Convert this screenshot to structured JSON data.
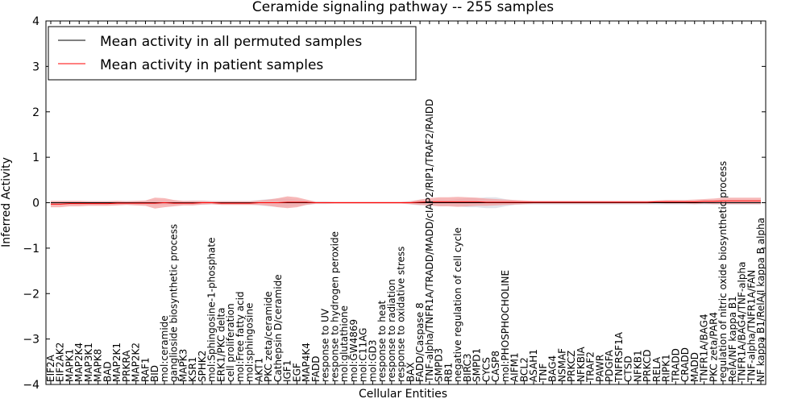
{
  "chart_data": {
    "type": "line",
    "title": "Ceramide signaling pathway -- 255 samples",
    "xlabel": "Cellular Entities",
    "ylabel": "Inferred Activity",
    "ylim": [
      -4,
      4
    ],
    "yticks": [
      "−4",
      "−3",
      "−2",
      "−1",
      "0",
      "1",
      "2",
      "3",
      "4"
    ],
    "legend_position": "top-left",
    "categories": [
      "EIF2A",
      "EIF2AK2",
      "MAPK1",
      "MAP2K4",
      "MAP3K1",
      "MAPK8",
      "BAD",
      "MAP2K1",
      "PRKRA",
      "MAP2K2",
      "RAF1",
      "BID",
      "mol:ceramide",
      "ganglioside biosynthetic process",
      "MAPK3",
      "KSR1",
      "SPHK2",
      "mol:Sphingosine-1-phosphate",
      "ERK1/PKC delta",
      "cell proliferation",
      "mol:Free fatty acid",
      "mol:sphingosine",
      "AKT1",
      "PKC zeta/ceramide",
      "Cathepsin D/ceramide",
      "IGF1",
      "EGF",
      "MAP4K4",
      "FADD",
      "response to UV",
      "response to hydrogen peroxide",
      "mol:glutathione",
      "mol:GW4869",
      "mol:C11AG",
      "mol:GD3",
      "response to heat",
      "response to radiation",
      "response to oxidative stress",
      "BAX",
      "FADD/Caspase 8",
      "TNF-alpha/TNFR1A/TRADD/MADD/cIAP2/RIP1/TRAF2/RAIDD",
      "SMPD3",
      "RB1",
      "negative regulation of cell cycle",
      "BIRC3",
      "SMPD1",
      "CYCS",
      "CASP8",
      "mol:PHOSPHOCHOLINE",
      "AIFM1",
      "BCL2",
      "ASAH1",
      "TNF",
      "BAG4",
      "NSMAF",
      "PRKCZ",
      "NFKBIA",
      "TRAF2",
      "PAWR",
      "PDGFA",
      "TNFRSF1A",
      "CTSD",
      "NFKB1",
      "PRKCD",
      "RELA",
      "RIPK1",
      "TRADD",
      "CRADD",
      "MADD",
      "TNFR1A/BAG4",
      "PKC zeta/PAR4",
      "regulation of nitric oxide biosynthetic process",
      "RelA/NF kappa B1",
      "TNFR1A/BAG4/TNF-alpha",
      "TNF-alpha/TNFR1A/FAN",
      "NF kappa B1/RelA/I kappa B alpha"
    ],
    "series": [
      {
        "name": "Mean activity in all permuted samples",
        "color": "#000000",
        "band_color": "#cfd2dc",
        "values": [
          0,
          0,
          0,
          0,
          0,
          0,
          0,
          0,
          0,
          0,
          0,
          0,
          0,
          0,
          0,
          0,
          0,
          0,
          0,
          0,
          0,
          0,
          0,
          0,
          0,
          0,
          0,
          0,
          0,
          0,
          0,
          0,
          0,
          0,
          0,
          0,
          0,
          0,
          0,
          0,
          0,
          0,
          0,
          0,
          0,
          0,
          0,
          0,
          0,
          0,
          0,
          0,
          0,
          0,
          0,
          0,
          0,
          0,
          0,
          0,
          0,
          0,
          0,
          0,
          0,
          0,
          0,
          0,
          0,
          0,
          0,
          0,
          0,
          0,
          0,
          0
        ],
        "band": [
          0.04,
          0.04,
          0.04,
          0.04,
          0.04,
          0.04,
          0.04,
          0.04,
          0.04,
          0.04,
          0.04,
          0.05,
          0.05,
          0.05,
          0.04,
          0.05,
          0.05,
          0.04,
          0.04,
          0.04,
          0.04,
          0.04,
          0.06,
          0.08,
          0.09,
          0.09,
          0.07,
          0.05,
          0.03,
          0.03,
          0.02,
          0.02,
          0.02,
          0.02,
          0.02,
          0.02,
          0.02,
          0.02,
          0.04,
          0.06,
          0.06,
          0.07,
          0.06,
          0.08,
          0.1,
          0.1,
          0.12,
          0.12,
          0.08,
          0.05,
          0.04,
          0.04,
          0.04,
          0.04,
          0.04,
          0.04,
          0.04,
          0.04,
          0.04,
          0.04,
          0.04,
          0.04,
          0.04,
          0.04,
          0.04,
          0.04,
          0.04,
          0.04,
          0.04,
          0.04,
          0.04,
          0.04,
          0.04,
          0.04,
          0.04,
          0.04
        ]
      },
      {
        "name": "Mean activity in patient samples",
        "color": "#ff0000",
        "band_color": "#f4a0a0",
        "values": [
          -0.03,
          -0.03,
          -0.02,
          -0.02,
          -0.02,
          -0.02,
          -0.02,
          -0.01,
          -0.01,
          -0.01,
          -0.01,
          -0.01,
          0.0,
          -0.01,
          -0.01,
          -0.01,
          0.0,
          0.0,
          -0.01,
          -0.01,
          -0.01,
          -0.01,
          0.0,
          0.0,
          0.0,
          0.01,
          0.01,
          0.01,
          0.0,
          0.0,
          0.0,
          0.0,
          0.0,
          0.0,
          0.0,
          0.0,
          0.0,
          0.0,
          0.0,
          0.01,
          0.02,
          0.02,
          0.02,
          0.02,
          0.02,
          0.02,
          0.01,
          0.01,
          0.01,
          0.01,
          0.01,
          0.01,
          0.01,
          0.01,
          0.01,
          0.01,
          0.01,
          0.01,
          0.01,
          0.01,
          0.01,
          0.01,
          0.01,
          0.01,
          0.02,
          0.02,
          0.02,
          0.02,
          0.02,
          0.03,
          0.03,
          0.04,
          0.04,
          0.04,
          0.04,
          0.04
        ],
        "band": [
          0.07,
          0.07,
          0.06,
          0.06,
          0.05,
          0.05,
          0.05,
          0.05,
          0.04,
          0.05,
          0.06,
          0.12,
          0.1,
          0.07,
          0.05,
          0.05,
          0.04,
          0.03,
          0.04,
          0.04,
          0.04,
          0.04,
          0.05,
          0.07,
          0.1,
          0.13,
          0.11,
          0.06,
          0.02,
          0.02,
          0.02,
          0.02,
          0.02,
          0.02,
          0.02,
          0.02,
          0.02,
          0.02,
          0.03,
          0.06,
          0.08,
          0.1,
          0.1,
          0.11,
          0.1,
          0.09,
          0.08,
          0.07,
          0.06,
          0.05,
          0.04,
          0.03,
          0.03,
          0.03,
          0.03,
          0.03,
          0.03,
          0.03,
          0.03,
          0.03,
          0.03,
          0.03,
          0.03,
          0.03,
          0.03,
          0.04,
          0.04,
          0.04,
          0.05,
          0.05,
          0.06,
          0.07,
          0.07,
          0.07,
          0.07,
          0.07
        ]
      }
    ]
  }
}
